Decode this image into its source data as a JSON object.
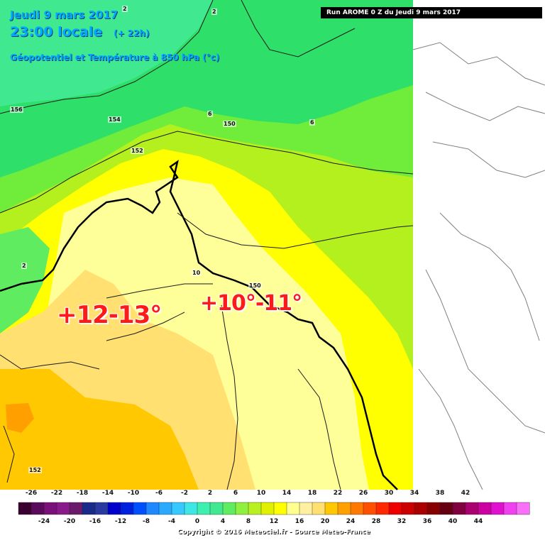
{
  "header": {
    "date": "Jeudi 9 mars 2017",
    "local_time": "23:00 locale",
    "lead": "(+ 22h)",
    "parameter": "Géopotentiel et Température à 850 hPa (°c)",
    "run": "Run AROME 0 Z du Jeudi 9 mars 2017"
  },
  "annotations": {
    "west": "+12-13°",
    "center": "+10°-11°"
  },
  "contour_labels": [
    "2",
    "2",
    "156",
    "154",
    "152",
    "150",
    "6",
    "6",
    "10",
    "150",
    "152",
    "2"
  ],
  "legend": {
    "top_ticks": [
      "-26",
      "-22",
      "-18",
      "-14",
      "-10",
      "-6",
      "-2",
      "2",
      "6",
      "10",
      "14",
      "18",
      "22",
      "26",
      "30",
      "34",
      "38",
      "42"
    ],
    "bottom_ticks": [
      "-24",
      "-20",
      "-16",
      "-12",
      "-8",
      "-4",
      "0",
      "4",
      "8",
      "12",
      "16",
      "20",
      "24",
      "28",
      "32",
      "36",
      "40",
      "44"
    ],
    "colors": [
      "#3a0030",
      "#5a0a5a",
      "#7a107a",
      "#8a1a8a",
      "#6a1a6a",
      "#1a2a8a",
      "#2a3aa0",
      "#0000cc",
      "#0020e0",
      "#0050ff",
      "#1e88ff",
      "#2aaaff",
      "#36c8ff",
      "#3ee6e6",
      "#3ef0b0",
      "#40e890",
      "#60ec60",
      "#90f040",
      "#b8f020",
      "#e0f000",
      "#ffff00",
      "#ffff90",
      "#fff0a0",
      "#ffe070",
      "#ffc800",
      "#ffa000",
      "#ff7800",
      "#ff5000",
      "#ff2800",
      "#ee0000",
      "#cc0000",
      "#aa0000",
      "#880000",
      "#660010",
      "#800040",
      "#aa0070",
      "#cc00a0",
      "#e010d0",
      "#f040f0",
      "#f870f8"
    ],
    "copyright": "Copyright © 2016 Meteociel.fr - Source Meteo-France"
  },
  "map_colors": {
    "cold_green": "#2ee06a",
    "mid_green": "#70ec3a",
    "lime": "#b4f01e",
    "yellow": "#ffff00",
    "pale_yellow": "#ffff99",
    "light_orange": "#ffe070",
    "orange": "#ffc800",
    "outside": "#ffffff"
  }
}
